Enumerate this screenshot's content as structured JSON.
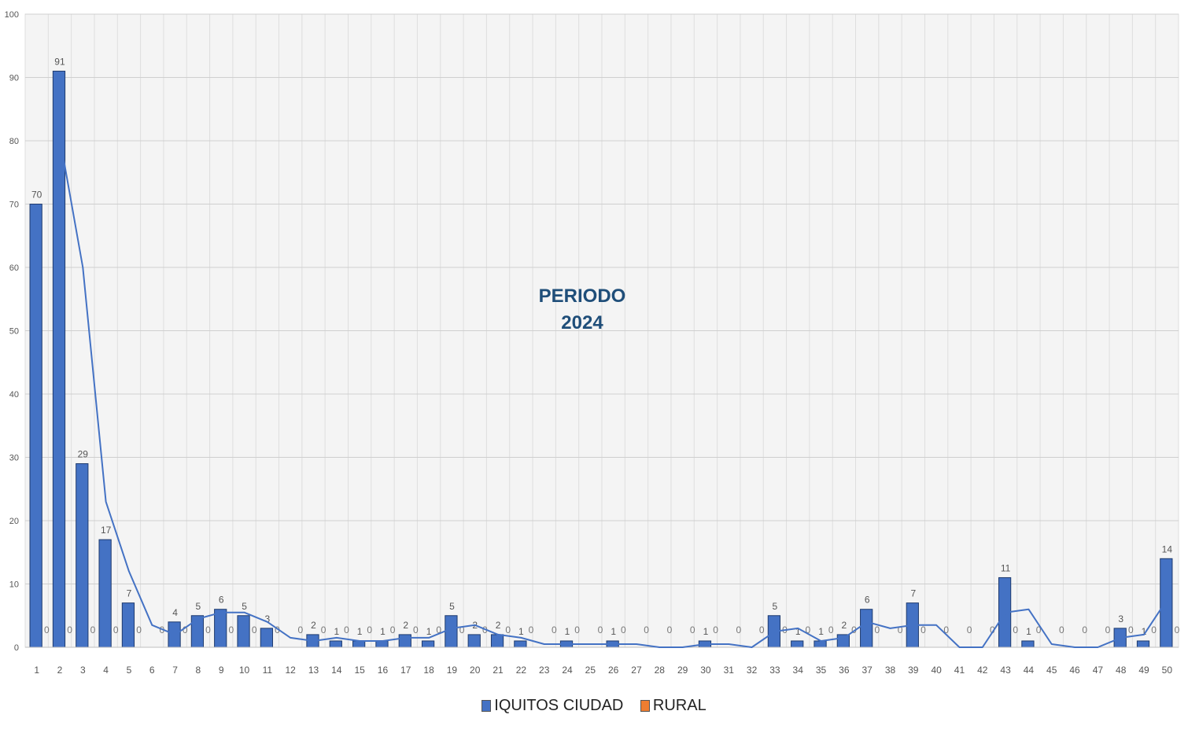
{
  "chart_data": {
    "type": "bar",
    "title": "",
    "xlabel": "",
    "ylabel": "",
    "ylim": [
      0,
      100
    ],
    "yticks": [
      0,
      10,
      20,
      30,
      40,
      50,
      60,
      70,
      80,
      90,
      100
    ],
    "grid": true,
    "legend_position": "bottom",
    "categories": [
      "1",
      "2",
      "3",
      "4",
      "5",
      "6",
      "7",
      "8",
      "9",
      "10",
      "11",
      "12",
      "13",
      "14",
      "15",
      "16",
      "17",
      "18",
      "19",
      "20",
      "21",
      "22",
      "23",
      "24",
      "25",
      "26",
      "27",
      "28",
      "29",
      "30",
      "31",
      "32",
      "33",
      "34",
      "35",
      "36",
      "37",
      "38",
      "39",
      "40",
      "41",
      "42",
      "43",
      "44",
      "45",
      "46",
      "47",
      "48",
      "49",
      "50"
    ],
    "series": [
      {
        "name": "IQUITOS CIUDAD",
        "color": "#4472c4",
        "values": [
          70,
          91,
          29,
          17,
          7,
          0,
          4,
          5,
          6,
          5,
          3,
          0,
          2,
          1,
          1,
          1,
          2,
          1,
          5,
          2,
          2,
          1,
          0,
          1,
          0,
          1,
          0,
          0,
          0,
          1,
          0,
          0,
          5,
          1,
          1,
          2,
          6,
          0,
          7,
          0,
          0,
          0,
          11,
          1,
          0,
          0,
          0,
          3,
          1,
          14
        ]
      },
      {
        "name": "RURAL",
        "color": "#ed7d31",
        "values": [
          0,
          0,
          0,
          0,
          0,
          0,
          0,
          0,
          0,
          0,
          0,
          0,
          0,
          0,
          0,
          0,
          0,
          0,
          0,
          0,
          0,
          0,
          0,
          0,
          0,
          0,
          0,
          0,
          0,
          0,
          0,
          0,
          0,
          0,
          0,
          0,
          0,
          0,
          0,
          0,
          0,
          0,
          0,
          0,
          0,
          0,
          0,
          0,
          0,
          0
        ]
      }
    ],
    "trendline": {
      "type": "moving-average",
      "color": "#4472c4"
    },
    "annotation": [
      "PERIODO",
      "2024"
    ]
  }
}
